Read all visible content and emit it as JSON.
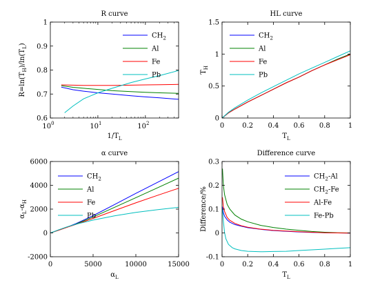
{
  "chart_data": [
    {
      "type": "line",
      "title": "R curve",
      "xlabel": "1/Tₗ",
      "xlabel_main": "1/T",
      "xlabel_sub": "L",
      "ylabel": "R=ln(Tₕ)/ln(Tₗ)",
      "ylabel_parts": [
        "R=ln(T",
        "H",
        ")/ln(T",
        "L",
        ")"
      ],
      "xscale": "log",
      "xlim": [
        1,
        500
      ],
      "ylim": [
        0.6,
        1
      ],
      "xticks": [
        1,
        10,
        100
      ],
      "xticklabels": [
        [
          "10",
          "0"
        ],
        [
          "10",
          "1"
        ],
        [
          "10",
          "2"
        ]
      ],
      "yticks": [
        0.6,
        0.7,
        0.8,
        0.9,
        1
      ],
      "yticklabels": [
        "0.6",
        "0.7",
        "0.8",
        "0.9",
        "1"
      ],
      "legend_position": "top-right",
      "series": [
        {
          "name": "CH2",
          "label_main": "CH",
          "label_sub": "2",
          "color": "#0000ff",
          "x": [
            1.7,
            3,
            5,
            10,
            20,
            50,
            100,
            200,
            500
          ],
          "y": [
            0.729,
            0.718,
            0.712,
            0.705,
            0.7,
            0.693,
            0.688,
            0.684,
            0.678
          ]
        },
        {
          "name": "Al",
          "label_main": "Al",
          "label_sub": "",
          "color": "#008000",
          "x": [
            1.7,
            3,
            5,
            10,
            20,
            50,
            100,
            200,
            500
          ],
          "y": [
            0.735,
            0.728,
            0.724,
            0.719,
            0.714,
            0.71,
            0.707,
            0.705,
            0.703
          ]
        },
        {
          "name": "Fe",
          "label_main": "Fe",
          "label_sub": "",
          "color": "#ff0000",
          "x": [
            1.7,
            3,
            5,
            10,
            20,
            50,
            100,
            200,
            500
          ],
          "y": [
            0.738,
            0.737,
            0.736,
            0.736,
            0.736,
            0.737,
            0.738,
            0.739,
            0.74
          ]
        },
        {
          "name": "Pb",
          "label_main": "Pb",
          "label_sub": "",
          "color": "#00bfbf",
          "x": [
            2,
            3,
            5,
            10,
            20,
            50,
            100,
            200,
            500
          ],
          "y": [
            0.622,
            0.65,
            0.68,
            0.705,
            0.724,
            0.748,
            0.763,
            0.777,
            0.798
          ]
        }
      ]
    },
    {
      "type": "line",
      "title": "HL curve",
      "xlabel": "Tₗ",
      "xlabel_main": "T",
      "xlabel_sub": "L",
      "ylabel": "Tₕ",
      "ylabel_parts": [
        "T",
        "H"
      ],
      "xlim": [
        0,
        1
      ],
      "ylim": [
        0,
        1.5
      ],
      "xticks": [
        0,
        0.2,
        0.4,
        0.6,
        0.8,
        1
      ],
      "xticklabels": [
        "0",
        "0.2",
        "0.4",
        "0.6",
        "0.8",
        "1"
      ],
      "yticks": [
        0,
        0.5,
        1,
        1.5
      ],
      "yticklabels": [
        "0",
        "0.5",
        "1",
        "1.5"
      ],
      "legend_position": "top-left",
      "series": [
        {
          "name": "CH2",
          "label_main": "CH",
          "label_sub": "2",
          "color": "#0000ff",
          "x": [
            0,
            0.05,
            0.1,
            0.2,
            0.3,
            0.4,
            0.5,
            0.6,
            0.7,
            0.8,
            0.9,
            1
          ],
          "y": [
            0,
            0.08,
            0.14,
            0.25,
            0.35,
            0.45,
            0.55,
            0.64,
            0.74,
            0.83,
            0.92,
            1.0
          ]
        },
        {
          "name": "Al",
          "label_main": "Al",
          "label_sub": "",
          "color": "#008000",
          "x": [
            0,
            0.05,
            0.1,
            0.2,
            0.3,
            0.4,
            0.5,
            0.6,
            0.7,
            0.8,
            0.9,
            1
          ],
          "y": [
            0,
            0.08,
            0.14,
            0.25,
            0.35,
            0.45,
            0.55,
            0.64,
            0.74,
            0.83,
            0.92,
            1.0
          ]
        },
        {
          "name": "Fe",
          "label_main": "Fe",
          "label_sub": "",
          "color": "#ff0000",
          "x": [
            0,
            0.05,
            0.1,
            0.2,
            0.3,
            0.4,
            0.5,
            0.6,
            0.7,
            0.8,
            0.9,
            1
          ],
          "y": [
            0,
            0.08,
            0.14,
            0.25,
            0.35,
            0.45,
            0.55,
            0.64,
            0.74,
            0.83,
            0.91,
            0.99
          ]
        },
        {
          "name": "Pb",
          "label_main": "Pb",
          "label_sub": "",
          "color": "#00bfbf",
          "x": [
            0,
            0.05,
            0.1,
            0.2,
            0.3,
            0.4,
            0.5,
            0.6,
            0.7,
            0.8,
            0.9,
            1
          ],
          "y": [
            0,
            0.09,
            0.16,
            0.28,
            0.39,
            0.49,
            0.59,
            0.69,
            0.78,
            0.87,
            0.96,
            1.05
          ]
        }
      ]
    },
    {
      "type": "line",
      "title": "α curve",
      "xlabel": "αₗ",
      "xlabel_main": "α",
      "xlabel_sub": "L",
      "ylabel": "αₗ-αₕ",
      "ylabel_parts": [
        "α",
        "L",
        "-α",
        "H"
      ],
      "xlim": [
        0,
        15000
      ],
      "ylim": [
        -2000,
        6000
      ],
      "xticks": [
        0,
        5000,
        10000,
        15000
      ],
      "xticklabels": [
        "0",
        "5000",
        "10000",
        "15000"
      ],
      "yticks": [
        -2000,
        0,
        2000,
        4000,
        6000
      ],
      "yticklabels": [
        "-2000",
        "0",
        "2000",
        "4000",
        "6000"
      ],
      "legend_position": "top-left",
      "series": [
        {
          "name": "CH2",
          "label_main": "CH",
          "label_sub": "2",
          "color": "#0000ff",
          "x": [
            0,
            1000,
            2000,
            3000,
            5000,
            7500,
            10000,
            12500,
            15000
          ],
          "y": [
            0,
            240,
            500,
            780,
            1450,
            2380,
            3320,
            4240,
            5150
          ]
        },
        {
          "name": "Al",
          "label_main": "Al",
          "label_sub": "",
          "color": "#008000",
          "x": [
            0,
            1000,
            2000,
            3000,
            5000,
            7500,
            10000,
            12500,
            15000
          ],
          "y": [
            0,
            240,
            490,
            750,
            1340,
            2150,
            2960,
            3780,
            4600
          ]
        },
        {
          "name": "Fe",
          "label_main": "Fe",
          "label_sub": "",
          "color": "#ff0000",
          "x": [
            0,
            1000,
            2000,
            3000,
            5000,
            7500,
            10000,
            12500,
            15000
          ],
          "y": [
            0,
            240,
            480,
            720,
            1220,
            1880,
            2530,
            3150,
            3750
          ]
        },
        {
          "name": "Pb",
          "label_main": "Pb",
          "label_sub": "",
          "color": "#00bfbf",
          "x": [
            0,
            1000,
            2000,
            3000,
            5000,
            7500,
            10000,
            12500,
            15000
          ],
          "y": [
            0,
            270,
            520,
            730,
            1080,
            1430,
            1720,
            1950,
            2150
          ]
        }
      ]
    },
    {
      "type": "line",
      "title": "Difference curve",
      "xlabel": "Tₗ",
      "xlabel_main": "T",
      "xlabel_sub": "L",
      "ylabel": "Difference/%",
      "ylabel_parts": [
        "Difference/%"
      ],
      "xlim": [
        0,
        1
      ],
      "ylim": [
        -0.1,
        0.3
      ],
      "xticks": [
        0,
        0.2,
        0.4,
        0.6,
        0.8,
        1
      ],
      "xticklabels": [
        "0",
        "0.2",
        "0.4",
        "0.6",
        "0.8",
        "1"
      ],
      "yticks": [
        -0.1,
        0,
        0.1,
        0.2,
        0.3
      ],
      "yticklabels": [
        "-0.1",
        "0",
        "0.1",
        "0.2",
        "0.3"
      ],
      "legend_position": "top-right",
      "series": [
        {
          "name": "CH2-Al",
          "label_main": "CH",
          "label_sub": "2",
          "label_tail": "-Al",
          "color": "#0000ff",
          "x": [
            0.003,
            0.01,
            0.02,
            0.04,
            0.06,
            0.1,
            0.15,
            0.2,
            0.3,
            0.4,
            0.5,
            0.6,
            0.7,
            0.8,
            0.9,
            1
          ],
          "y": [
            0.11,
            0.085,
            0.07,
            0.055,
            0.045,
            0.035,
            0.028,
            0.022,
            0.015,
            0.01,
            0.007,
            0.004,
            0.002,
            0.001,
            0.0,
            -0.001
          ]
        },
        {
          "name": "CH2-Fe",
          "label_main": "CH",
          "label_sub": "2",
          "label_tail": "-Fe",
          "color": "#008000",
          "x": [
            0.003,
            0.01,
            0.02,
            0.04,
            0.06,
            0.1,
            0.15,
            0.2,
            0.3,
            0.4,
            0.5,
            0.6,
            0.7,
            0.8,
            0.9,
            1
          ],
          "y": [
            0.27,
            0.2,
            0.16,
            0.12,
            0.1,
            0.075,
            0.058,
            0.047,
            0.032,
            0.023,
            0.016,
            0.011,
            0.006,
            0.003,
            0.001,
            0.0
          ]
        },
        {
          "name": "Al-Fe",
          "label_main": "Al-Fe",
          "label_sub": "",
          "label_tail": "",
          "color": "#ff0000",
          "x": [
            0.003,
            0.01,
            0.02,
            0.04,
            0.06,
            0.1,
            0.15,
            0.2,
            0.3,
            0.4,
            0.5,
            0.6,
            0.7,
            0.8,
            0.9,
            1
          ],
          "y": [
            0.15,
            0.11,
            0.09,
            0.065,
            0.053,
            0.04,
            0.03,
            0.024,
            0.016,
            0.011,
            0.008,
            0.005,
            0.003,
            0.001,
            0.0,
            -0.001
          ]
        },
        {
          "name": "Fe-Pb",
          "label_main": "Fe-Pb",
          "label_sub": "",
          "label_tail": "",
          "color": "#00bfbf",
          "x": [
            0.003,
            0.01,
            0.02,
            0.03,
            0.05,
            0.08,
            0.1,
            0.15,
            0.2,
            0.3,
            0.4,
            0.5,
            0.6,
            0.7,
            0.8,
            0.9,
            1
          ],
          "y": [
            0.1,
            0.05,
            0.0,
            -0.025,
            -0.048,
            -0.062,
            -0.067,
            -0.074,
            -0.077,
            -0.079,
            -0.078,
            -0.077,
            -0.074,
            -0.071,
            -0.068,
            -0.065,
            -0.062
          ]
        }
      ]
    }
  ]
}
